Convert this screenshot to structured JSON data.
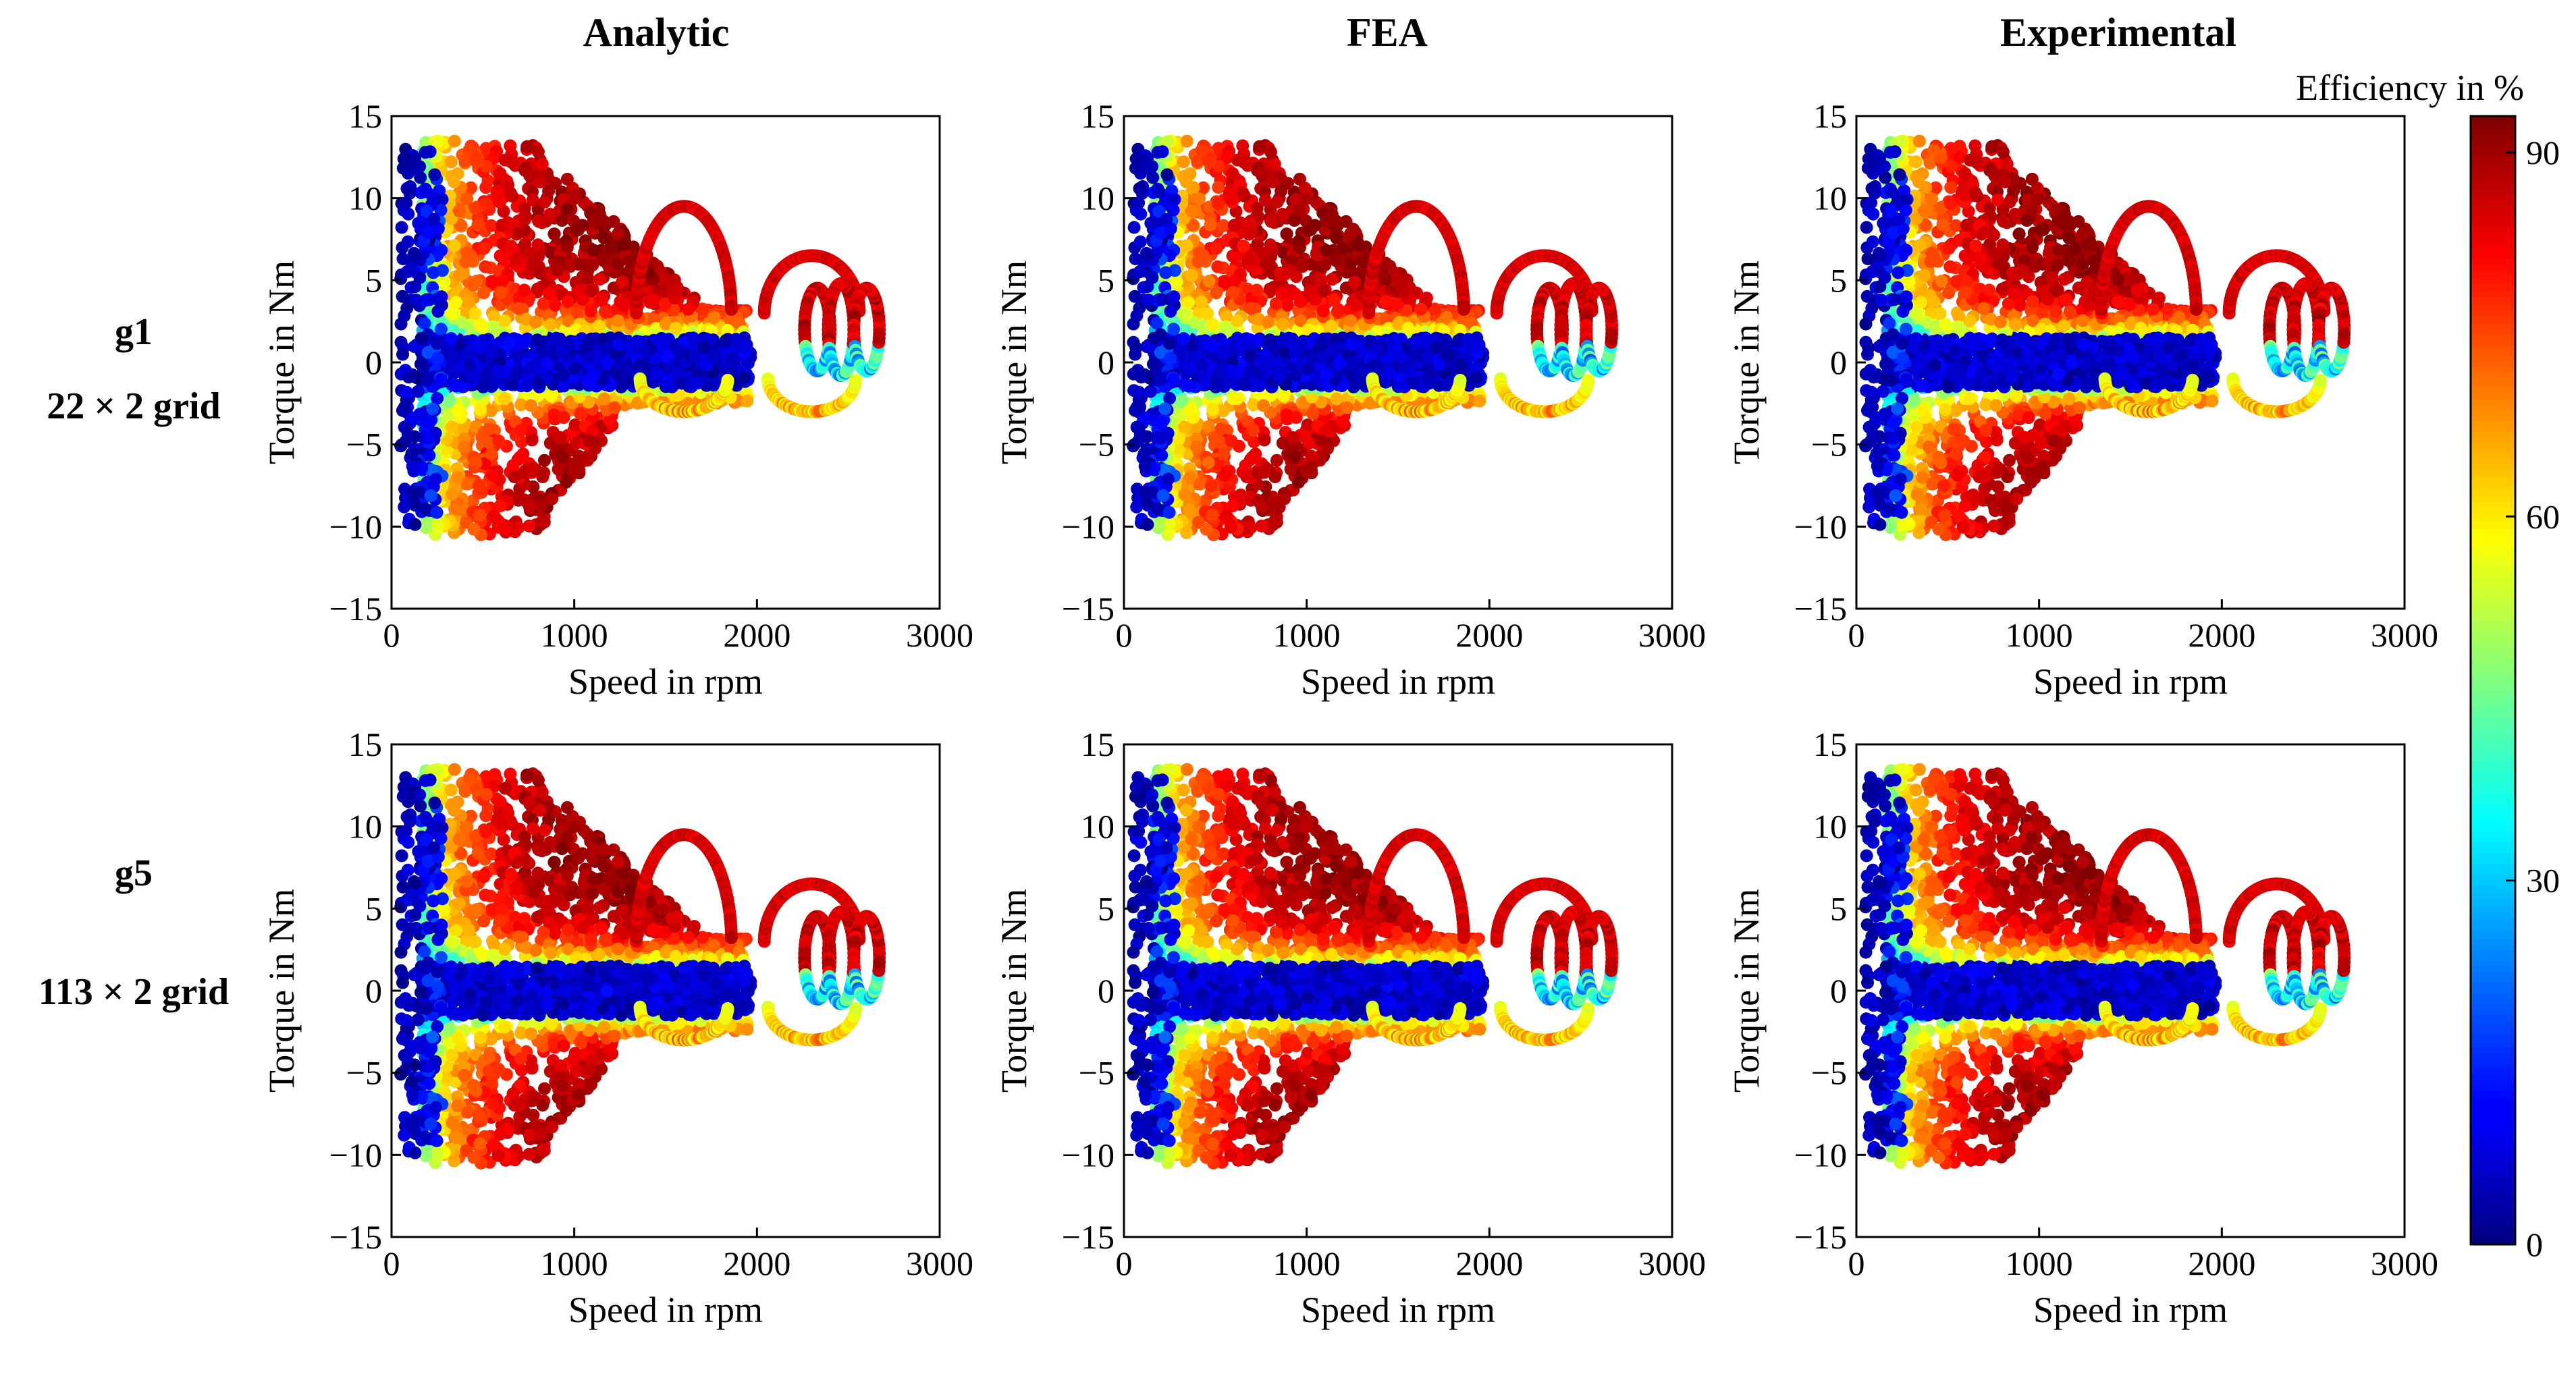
{
  "figure": {
    "columns": [
      "Analytic",
      "FEA",
      "Experimental"
    ],
    "rows": [
      {
        "name": "g1",
        "grid": "22 × 2 grid"
      },
      {
        "name": "g5",
        "grid": "113 × 2 grid"
      }
    ],
    "colorbar": {
      "title": "Efficiency in %",
      "range": [
        0,
        93
      ],
      "ticks": [
        "90",
        "60",
        "30",
        "0"
      ],
      "tick_values": [
        90,
        60,
        30,
        0
      ],
      "colormap": "jet"
    }
  },
  "chart_data": {
    "type": "scatter",
    "layout": "2x3 small multiples",
    "xlabel": "Speed in rpm",
    "ylabel": "Torque in Nm",
    "xlim": [
      0,
      3000
    ],
    "ylim": [
      -15,
      15
    ],
    "xticks": [
      0,
      1000,
      2000,
      3000
    ],
    "yticks": [
      15,
      10,
      5,
      0,
      -5,
      -10,
      -15
    ],
    "xtick_labels": [
      "0",
      "1000",
      "2000",
      "3000"
    ],
    "ytick_labels": [
      "15",
      "10",
      "5",
      "0",
      "−5",
      "−10",
      "−15"
    ],
    "color_variable": "Efficiency in %",
    "operating_region": {
      "speed_range_rpm": [
        150,
        2700
      ],
      "torque_range_nm": [
        -10.5,
        13.5
      ],
      "peak_torque_nm": 13.5,
      "min_torque_nm": -10.5,
      "low_efficiency_band_torque_nm": [
        -1.5,
        1.5
      ]
    },
    "trajectory_loops": [
      {
        "center_speed_rpm": 1600,
        "peak_torque_nm": 9.5,
        "efficiency_pct": 85
      },
      {
        "center_speed_rpm": 2300,
        "peak_torque_nm": 6.5,
        "efficiency_pct": 85
      }
    ],
    "panels": [
      {
        "row": "g1",
        "column": "Analytic"
      },
      {
        "row": "g1",
        "column": "FEA"
      },
      {
        "row": "g1",
        "column": "Experimental"
      },
      {
        "row": "g5",
        "column": "Analytic"
      },
      {
        "row": "g5",
        "column": "FEA"
      },
      {
        "row": "g5",
        "column": "Experimental"
      }
    ]
  }
}
